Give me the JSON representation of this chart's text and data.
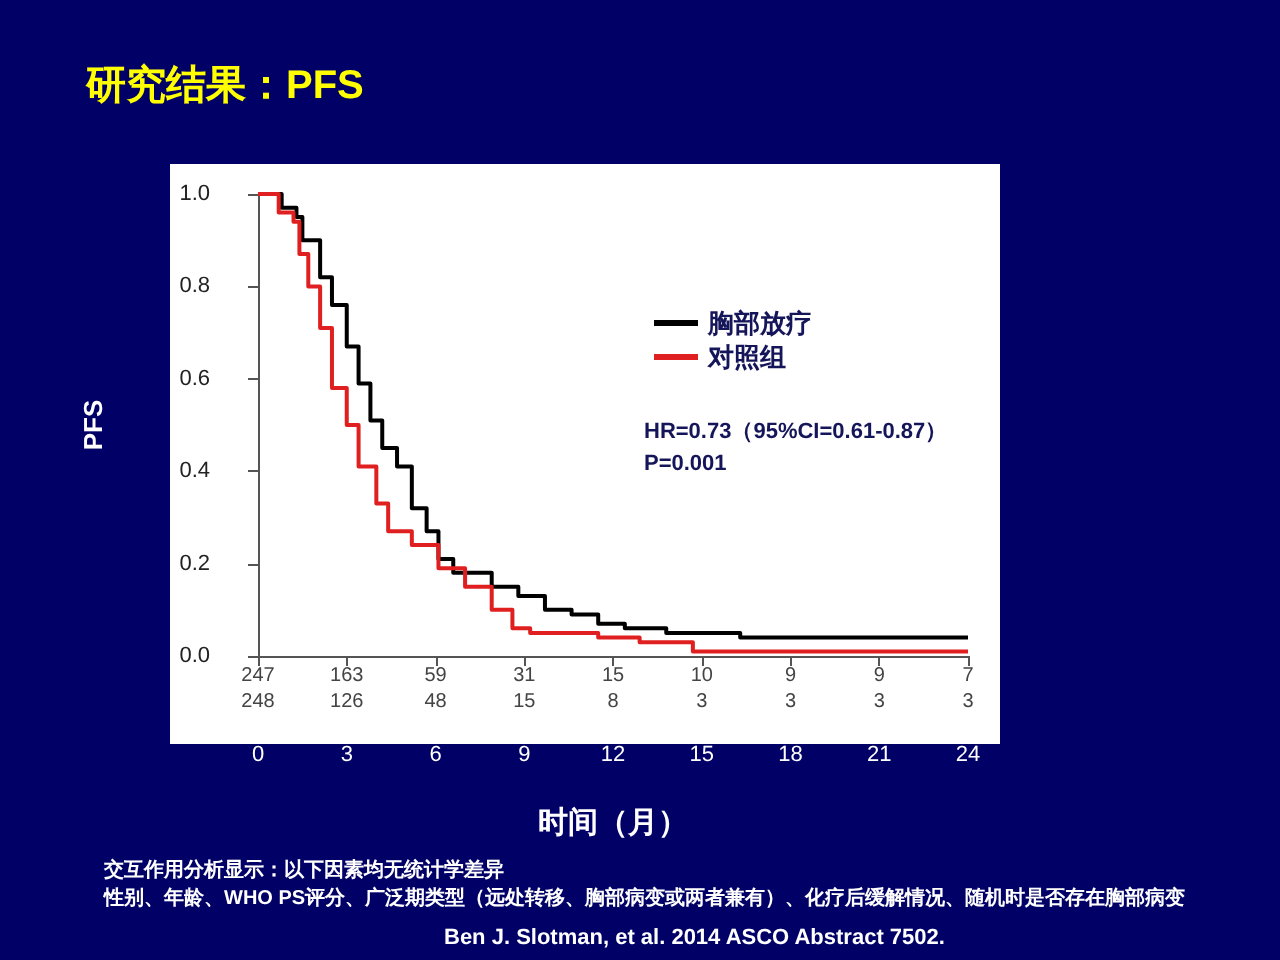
{
  "chart_data": {
    "type": "step",
    "title": "研究结果：PFS",
    "xlabel": "时间（月）",
    "ylabel": "PFS",
    "xlim": [
      0,
      24
    ],
    "xticks": [
      0,
      3,
      6,
      9,
      12,
      15,
      18,
      21,
      24
    ],
    "ylim": [
      0,
      1
    ],
    "yticks": [
      {
        "value": 0,
        "label": "0.0"
      },
      0.2,
      0.4,
      0.6,
      0.8,
      {
        "value": 1,
        "label": "1.0"
      }
    ],
    "grid": false,
    "legend": "right",
    "marker": "none",
    "line_style": "solid",
    "series": [
      {
        "name": "胸部放疗",
        "color": "#000000",
        "x": [
          0,
          0.8,
          1.3,
          1.5,
          2.1,
          2.5,
          3.0,
          3.4,
          3.8,
          4.2,
          4.7,
          5.2,
          5.7,
          6.1,
          6.6,
          7.3,
          7.9,
          8.8,
          9.7,
          10.6,
          11.5,
          12.4,
          13.8,
          16.3,
          24
        ],
        "values": [
          1.0,
          0.97,
          0.95,
          0.9,
          0.82,
          0.76,
          0.67,
          0.59,
          0.51,
          0.45,
          0.41,
          0.32,
          0.27,
          0.21,
          0.18,
          0.18,
          0.15,
          0.13,
          0.1,
          0.09,
          0.07,
          0.06,
          0.05,
          0.04,
          0.04
        ]
      },
      {
        "name": "对照组",
        "color": "#e02020",
        "x": [
          0,
          0.7,
          1.2,
          1.4,
          1.7,
          2.1,
          2.5,
          3.0,
          3.4,
          4.0,
          4.4,
          5.2,
          6.1,
          7.0,
          7.9,
          8.6,
          9.2,
          10.6,
          11.5,
          12.9,
          14.7,
          24
        ],
        "values": [
          1.0,
          0.96,
          0.94,
          0.87,
          0.8,
          0.71,
          0.58,
          0.5,
          0.41,
          0.33,
          0.27,
          0.24,
          0.19,
          0.15,
          0.1,
          0.06,
          0.05,
          0.05,
          0.04,
          0.03,
          0.01,
          0.01
        ]
      }
    ],
    "annotations": [
      "HR=0.73（95%CI=0.61-0.87）\nP=0.001",
      "交互作用分析显示：以下因素均无统计学差异",
      "性别、年龄、WHO PS评分、广泛期类型（远处转移、胸部病变或两者兼有）、化疗后缓解情况、随机时是否存在胸部病变",
      "Ben J. Slotman, et al. 2014 ASCO Abstract 7502.",
      "247",
      "163",
      "59",
      "31",
      "15",
      "10",
      "9",
      "9",
      "7",
      "248",
      "126",
      "48",
      "15",
      "8",
      "3",
      "3",
      "3",
      "3"
    ]
  }
}
